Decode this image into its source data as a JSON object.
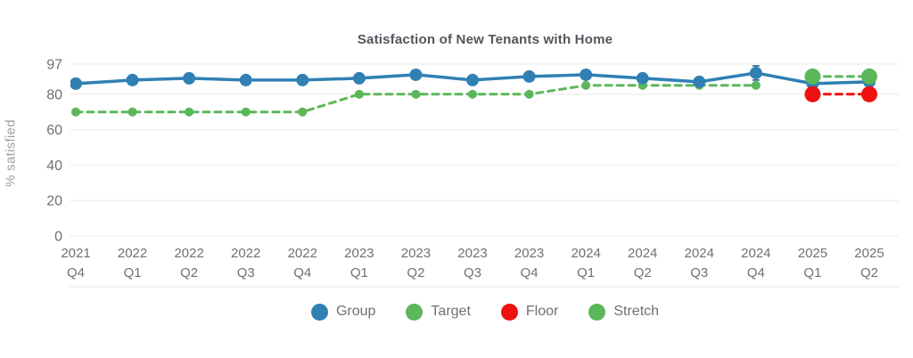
{
  "title": "Satisfaction of New Tenants with Home",
  "ylabel": "% satisfied",
  "colors": {
    "group": "#3080b4",
    "target": "#5bb75a",
    "floor": "#ee1111",
    "stretch": "#5bb75a",
    "grid": "#efefef",
    "axis_bottom_line": "#e7e7ea",
    "tick_text": "#6e7076",
    "title_text": "#53545d",
    "error_bar": "#2a6496"
  },
  "chart_data": {
    "type": "line",
    "title": "Satisfaction of New Tenants with Home",
    "xlabel": "",
    "ylabel": "% satisfied",
    "ylim": [
      0,
      100
    ],
    "grid": true,
    "legend_position": "bottom",
    "y_ticks": [
      0,
      20,
      40,
      60,
      80,
      97
    ],
    "categories": [
      "2021 Q4",
      "2022 Q1",
      "2022 Q2",
      "2022 Q3",
      "2022 Q4",
      "2023 Q1",
      "2023 Q2",
      "2023 Q3",
      "2023 Q4",
      "2024 Q1",
      "2024 Q2",
      "2024 Q3",
      "2024 Q4",
      "2025 Q1",
      "2025 Q2"
    ],
    "series": [
      {
        "name": "Group",
        "color": "#3080b4",
        "style": "solid",
        "marker_radius": 7,
        "values": [
          86,
          88,
          89,
          88,
          88,
          89,
          91,
          88,
          90,
          91,
          89,
          87,
          92,
          86,
          87
        ]
      },
      {
        "name": "Target",
        "color": "#5bb75a",
        "style": "dashed",
        "marker_radius": 5,
        "values": [
          70,
          70,
          70,
          70,
          70,
          80,
          80,
          80,
          80,
          85,
          85,
          85,
          85,
          null,
          null
        ]
      },
      {
        "name": "Floor",
        "color": "#ee1111",
        "style": "dashed",
        "marker_radius": 9,
        "values": [
          null,
          null,
          null,
          null,
          null,
          null,
          null,
          null,
          null,
          null,
          null,
          null,
          null,
          80,
          80
        ]
      },
      {
        "name": "Stretch",
        "color": "#5bb75a",
        "style": "dashed",
        "marker_radius": 9,
        "values": [
          null,
          null,
          null,
          null,
          null,
          null,
          null,
          null,
          null,
          null,
          null,
          null,
          null,
          90,
          90
        ]
      }
    ],
    "error_bars": [
      {
        "series": "Group",
        "category_index": 12,
        "low": 88,
        "high": 96
      }
    ]
  }
}
